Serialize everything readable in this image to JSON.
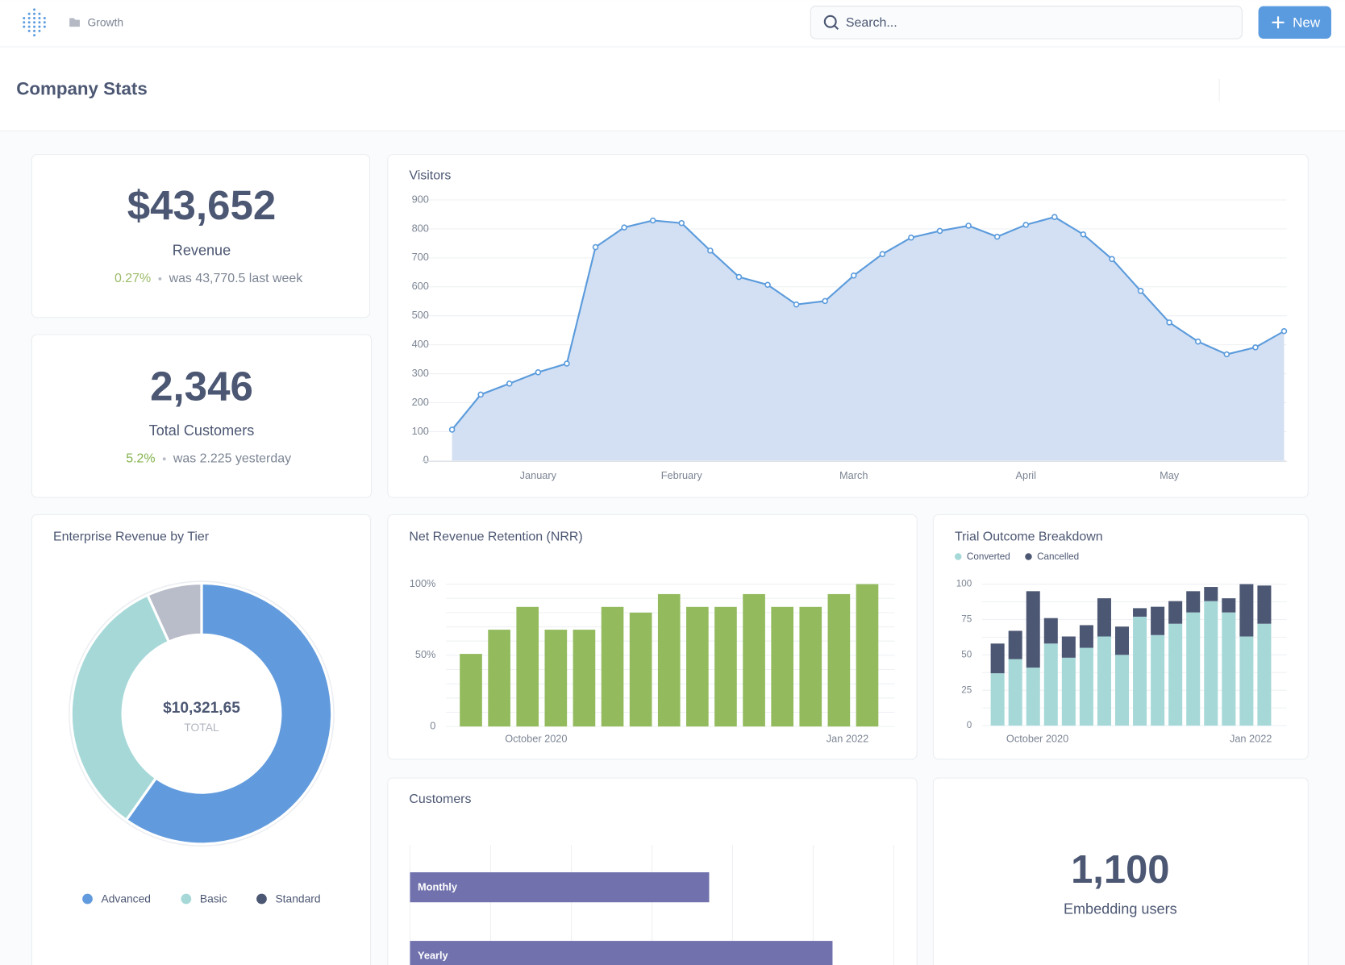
{
  "header": {
    "breadcrumb": "Growth",
    "search_placeholder": "Search...",
    "new_button": "New"
  },
  "page_title": "Company Stats",
  "scalars": [
    {
      "value": "$43,652",
      "label": "Revenue",
      "change": "0.27%",
      "comparison": "was 43,770.5 last week"
    },
    {
      "value": "2,346",
      "label": "Total Customers",
      "change": "5.2%",
      "comparison": "was 2.225 yesterday"
    },
    {
      "value": "1,100",
      "label": "Embedding users"
    }
  ],
  "chart_data": [
    {
      "type": "area",
      "title": "Visitors",
      "categories": [
        null,
        null,
        null,
        "January",
        null,
        null,
        null,
        null,
        "February",
        null,
        null,
        null,
        null,
        null,
        "March",
        null,
        null,
        null,
        null,
        null,
        "April",
        null,
        null,
        null,
        null,
        "May",
        null,
        null,
        null,
        null
      ],
      "values": [
        107,
        228,
        266,
        305,
        335,
        737,
        805,
        829,
        820,
        725,
        634,
        607,
        539,
        551,
        639,
        713,
        770,
        793,
        811,
        773,
        814,
        841,
        781,
        696,
        586,
        477,
        411,
        367,
        391,
        447
      ],
      "color": "#5b9bdc",
      "fill": "#d3e0f3",
      "ylim": [
        0,
        900
      ],
      "yticks": [
        0,
        100,
        200,
        300,
        400,
        500,
        600,
        700,
        800,
        900
      ],
      "grid": true
    },
    {
      "type": "donut",
      "title": "Enterprise Revenue by Tier",
      "categories": [
        "Advanced",
        "Basic",
        "Standard"
      ],
      "values": [
        59.8,
        33.4,
        6.8
      ],
      "colors": [
        "#629bdd",
        "#a6d8d8",
        "#b9bcc9"
      ],
      "legend_colors": [
        "#629bdd",
        "#a6d8d8",
        "#4c5773"
      ],
      "total_label": "$10,321,65",
      "total_caption": "TOTAL"
    },
    {
      "type": "bar",
      "title": "Net Revenue Retention (NRR)",
      "categories": [
        null,
        null,
        "October 2020",
        null,
        null,
        null,
        null,
        null,
        null,
        null,
        null,
        null,
        null,
        "Jan 2022",
        null
      ],
      "values": [
        51,
        68,
        84,
        68,
        68,
        84,
        80,
        93,
        84,
        84,
        93,
        84,
        84,
        93,
        100
      ],
      "color": "#93bb5e",
      "ylim": [
        0,
        100
      ],
      "yticks": [
        0,
        {
          "value": 50,
          "label": "50%"
        },
        {
          "value": 100,
          "label": "100%"
        }
      ],
      "ygrid": [
        0,
        10,
        20,
        30,
        40,
        50,
        60,
        70,
        80,
        90,
        100
      ],
      "grid": true
    },
    {
      "type": "stacked_bar",
      "title": "Trial Outcome Breakdown",
      "categories": [
        null,
        null,
        "October 2020",
        null,
        null,
        null,
        null,
        null,
        null,
        null,
        null,
        null,
        null,
        null,
        "Jan 2022",
        null
      ],
      "series": [
        {
          "name": "Converted",
          "color": "#a6d8d8",
          "values": [
            37,
            47,
            41,
            58,
            48,
            55,
            63,
            50,
            77,
            64,
            72,
            80,
            88,
            80,
            63,
            72
          ]
        },
        {
          "name": "Cancelled",
          "color": "#4c5773",
          "values": [
            21,
            20,
            54,
            18,
            15,
            16,
            27,
            20,
            6,
            20,
            16,
            15,
            10,
            10,
            37,
            27
          ]
        }
      ],
      "ylim": [
        0,
        100
      ],
      "yticks": [
        0,
        25,
        50,
        75,
        100
      ],
      "ygrid": [
        0,
        12.5,
        25,
        37.5,
        50,
        62.5,
        75,
        87.5,
        100
      ],
      "grid": true,
      "legend": "top-left"
    },
    {
      "type": "hbar",
      "title": "Customers",
      "categories": [
        "Monthly",
        "Yearly"
      ],
      "values": [
        3.71,
        5.24
      ],
      "color": "#7172ad",
      "xlim": [
        0,
        6
      ],
      "xgrid": [
        0,
        1,
        2,
        3,
        4,
        5,
        6
      ],
      "grid": true
    }
  ]
}
